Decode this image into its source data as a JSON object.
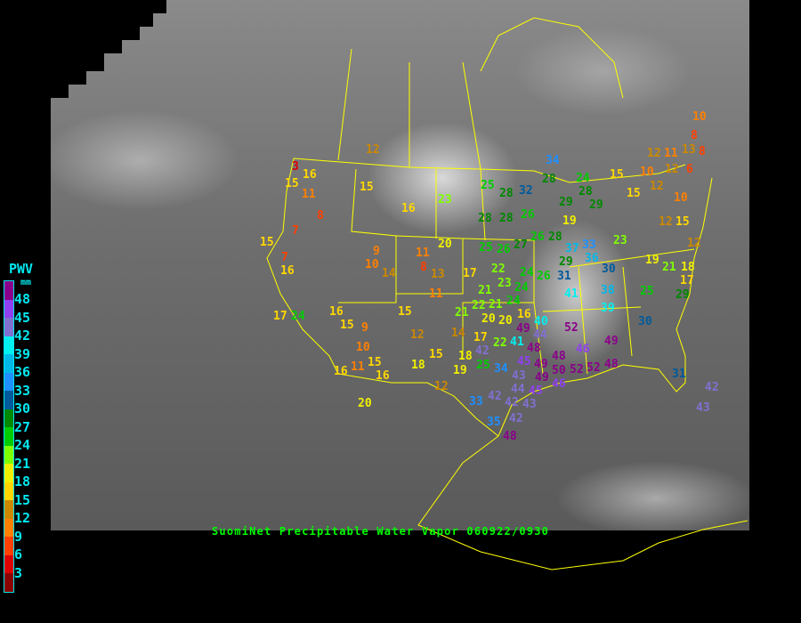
{
  "legend": {
    "title": "PWV",
    "unit": "mm",
    "labels": [
      "48",
      "45",
      "42",
      "39",
      "36",
      "33",
      "30",
      "27",
      "24",
      "21",
      "18",
      "15",
      "12",
      "9",
      "6",
      "3"
    ],
    "colors": [
      "#8b008b",
      "#9040f0",
      "#8070d0",
      "#00f0f0",
      "#00b8e8",
      "#1e90ff",
      "#005a9c",
      "#008800",
      "#00cc00",
      "#80ff00",
      "#f0f000",
      "#ffd700",
      "#cc8800",
      "#ff8000",
      "#ff4000",
      "#dd0000",
      "#8b0000"
    ]
  },
  "caption": "SuomiNet Precipitable Water Vapor 060922/0930",
  "border_color": "#ffff00",
  "station_values": [
    10,
    8,
    8,
    12,
    11,
    13,
    12,
    6,
    10,
    12,
    15,
    15,
    10,
    12,
    15,
    12,
    18,
    17,
    21,
    19,
    29,
    25,
    23,
    30,
    38,
    39,
    30,
    49,
    48,
    31,
    42,
    43,
    34,
    24,
    28,
    28,
    32,
    28,
    25,
    23,
    28,
    28,
    26,
    29,
    29,
    19,
    25,
    26,
    27,
    26,
    28,
    33,
    37,
    36,
    29,
    31,
    26,
    24,
    22,
    17,
    23,
    41,
    52,
    46,
    48,
    49,
    50,
    52,
    52,
    49,
    46,
    40,
    49,
    41,
    44,
    42,
    45,
    48,
    43,
    44,
    45,
    42,
    42,
    43,
    33,
    35,
    42,
    48,
    34,
    25,
    18,
    19,
    12,
    22,
    17,
    14,
    15,
    18,
    12,
    21,
    21,
    22,
    20,
    21,
    24,
    24,
    20,
    16,
    12,
    15,
    16,
    20,
    11,
    8,
    13,
    11,
    9,
    10,
    14,
    15,
    9,
    15,
    16,
    10,
    15,
    11,
    16,
    16,
    20,
    3,
    16,
    15,
    11,
    8,
    7,
    15,
    7,
    16,
    17,
    24
  ]
}
